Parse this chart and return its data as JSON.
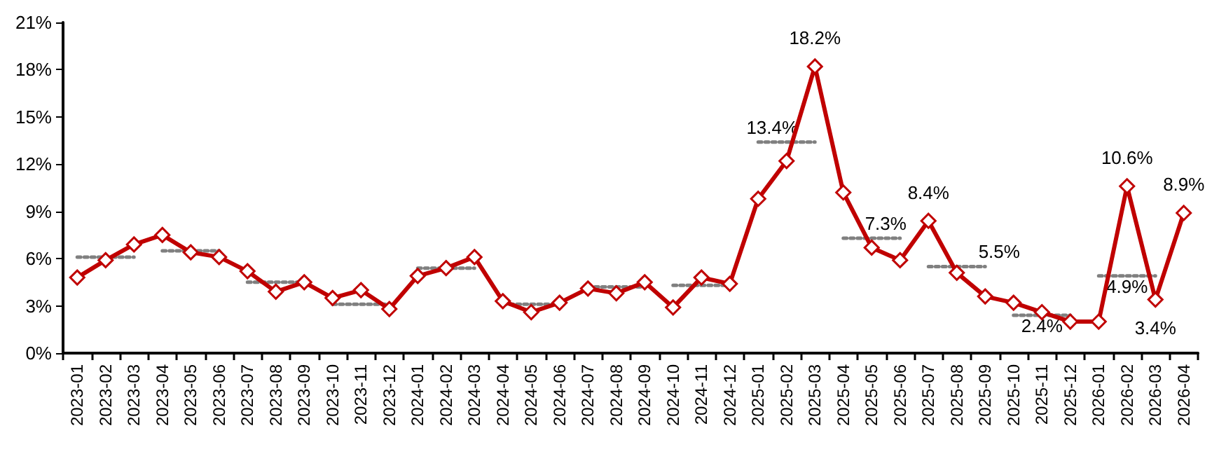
{
  "chart_data": {
    "type": "line",
    "categories": [
      "2023-01",
      "2023-02",
      "2023-03",
      "2023-04",
      "2023-05",
      "2023-06",
      "2023-07",
      "2023-08",
      "2023-09",
      "2023-10",
      "2023-11",
      "2023-12",
      "2024-01",
      "2024-02",
      "2024-03",
      "2024-04",
      "2024-05",
      "2024-06",
      "2024-07",
      "2024-08",
      "2024-09",
      "2024-10",
      "2024-11",
      "2024-12",
      "2025-01",
      "2025-02",
      "2025-03",
      "2025-04",
      "2025-05",
      "2025-06",
      "2025-07",
      "2025-08",
      "2025-09",
      "2025-10",
      "2025-11",
      "2025-12",
      "2026-01",
      "2026-02",
      "2026-03",
      "2026-04"
    ],
    "series": [
      {
        "color": "#c00000",
        "marker": "diamond",
        "line_style": "solid",
        "values": [
          4.8,
          5.9,
          6.9,
          7.5,
          6.4,
          6.1,
          5.2,
          3.9,
          4.5,
          3.5,
          4.0,
          2.8,
          4.9,
          5.4,
          6.1,
          3.3,
          2.6,
          3.2,
          4.1,
          3.8,
          4.5,
          2.9,
          4.8,
          4.4,
          9.8,
          12.2,
          18.2,
          10.2,
          6.7,
          5.9,
          8.4,
          5.1,
          3.6,
          3.2,
          2.6,
          2.0,
          2.0,
          10.6,
          3.4,
          8.9
        ],
        "value_labels": [
          null,
          null,
          null,
          null,
          null,
          null,
          null,
          null,
          null,
          null,
          null,
          null,
          null,
          null,
          null,
          null,
          null,
          null,
          null,
          null,
          null,
          null,
          null,
          null,
          null,
          null,
          "18.2%",
          null,
          null,
          null,
          "8.4%",
          null,
          null,
          null,
          null,
          null,
          null,
          "10.6%",
          "3.4%",
          "8.9%"
        ]
      },
      {
        "color": "#808080",
        "marker": "none",
        "line_style": "dotted",
        "values": [
          6.1,
          6.1,
          6.1,
          null,
          null,
          null,
          null,
          null,
          null,
          null,
          null,
          null,
          null,
          null,
          null,
          null,
          null,
          null,
          null,
          null,
          null,
          null,
          null,
          null,
          null,
          null,
          null,
          null,
          null,
          null,
          null,
          null,
          null,
          null,
          null,
          null,
          null,
          null,
          null,
          null
        ]
      },
      {
        "color": "#808080",
        "marker": "none",
        "line_style": "dotted",
        "values": [
          null,
          null,
          null,
          6.5,
          6.5,
          6.5,
          null,
          null,
          null,
          null,
          null,
          null,
          null,
          null,
          null,
          null,
          null,
          null,
          null,
          null,
          null,
          null,
          null,
          null,
          null,
          null,
          null,
          null,
          null,
          null,
          null,
          null,
          null,
          null,
          null,
          null,
          null,
          null,
          null,
          null
        ]
      },
      {
        "color": "#808080",
        "marker": "none",
        "line_style": "dotted",
        "values": [
          null,
          null,
          null,
          null,
          null,
          null,
          4.5,
          4.5,
          4.5,
          null,
          null,
          null,
          null,
          null,
          null,
          null,
          null,
          null,
          null,
          null,
          null,
          null,
          null,
          null,
          null,
          null,
          null,
          null,
          null,
          null,
          null,
          null,
          null,
          null,
          null,
          null,
          null,
          null,
          null,
          null
        ]
      },
      {
        "color": "#808080",
        "marker": "none",
        "line_style": "dotted",
        "values": [
          null,
          null,
          null,
          null,
          null,
          null,
          null,
          null,
          null,
          3.1,
          3.1,
          3.1,
          null,
          null,
          null,
          null,
          null,
          null,
          null,
          null,
          null,
          null,
          null,
          null,
          null,
          null,
          null,
          null,
          null,
          null,
          null,
          null,
          null,
          null,
          null,
          null,
          null,
          null,
          null,
          null
        ]
      },
      {
        "color": "#808080",
        "marker": "none",
        "line_style": "dotted",
        "values": [
          null,
          null,
          null,
          null,
          null,
          null,
          null,
          null,
          null,
          null,
          null,
          null,
          5.4,
          5.4,
          5.4,
          null,
          null,
          null,
          null,
          null,
          null,
          null,
          null,
          null,
          null,
          null,
          null,
          null,
          null,
          null,
          null,
          null,
          null,
          null,
          null,
          null,
          null,
          null,
          null,
          null
        ]
      },
      {
        "color": "#808080",
        "marker": "none",
        "line_style": "dotted",
        "values": [
          null,
          null,
          null,
          null,
          null,
          null,
          null,
          null,
          null,
          null,
          null,
          null,
          null,
          null,
          null,
          3.1,
          3.1,
          3.1,
          null,
          null,
          null,
          null,
          null,
          null,
          null,
          null,
          null,
          null,
          null,
          null,
          null,
          null,
          null,
          null,
          null,
          null,
          null,
          null,
          null,
          null
        ]
      },
      {
        "color": "#808080",
        "marker": "none",
        "line_style": "dotted",
        "values": [
          null,
          null,
          null,
          null,
          null,
          null,
          null,
          null,
          null,
          null,
          null,
          null,
          null,
          null,
          null,
          null,
          null,
          null,
          4.2,
          4.2,
          4.2,
          null,
          null,
          null,
          null,
          null,
          null,
          null,
          null,
          null,
          null,
          null,
          null,
          null,
          null,
          null,
          null,
          null,
          null,
          null
        ]
      },
      {
        "color": "#808080",
        "marker": "none",
        "line_style": "dotted",
        "values": [
          null,
          null,
          null,
          null,
          null,
          null,
          null,
          null,
          null,
          null,
          null,
          null,
          null,
          null,
          null,
          null,
          null,
          null,
          null,
          null,
          null,
          4.3,
          4.3,
          4.3,
          null,
          null,
          null,
          null,
          null,
          null,
          null,
          null,
          null,
          null,
          null,
          null,
          null,
          null,
          null,
          null
        ]
      },
      {
        "color": "#808080",
        "marker": "none",
        "line_style": "dotted",
        "values": [
          null,
          null,
          null,
          null,
          null,
          null,
          null,
          null,
          null,
          null,
          null,
          null,
          null,
          null,
          null,
          null,
          null,
          null,
          null,
          null,
          null,
          null,
          null,
          null,
          13.4,
          13.4,
          13.4,
          null,
          null,
          null,
          null,
          null,
          null,
          null,
          null,
          null,
          null,
          null,
          null,
          null
        ],
        "value_labels": [
          null,
          null,
          null,
          null,
          null,
          null,
          null,
          null,
          null,
          null,
          null,
          null,
          null,
          null,
          null,
          null,
          null,
          null,
          null,
          null,
          null,
          null,
          null,
          null,
          "13.4%",
          null,
          null,
          null,
          null,
          null,
          null,
          null,
          null,
          null,
          null,
          null,
          null,
          null,
          null,
          null
        ]
      },
      {
        "color": "#808080",
        "marker": "none",
        "line_style": "dotted",
        "values": [
          null,
          null,
          null,
          null,
          null,
          null,
          null,
          null,
          null,
          null,
          null,
          null,
          null,
          null,
          null,
          null,
          null,
          null,
          null,
          null,
          null,
          null,
          null,
          null,
          null,
          null,
          null,
          7.3,
          7.3,
          7.3,
          null,
          null,
          null,
          null,
          null,
          null,
          null,
          null,
          null,
          null
        ],
        "value_labels": [
          null,
          null,
          null,
          null,
          null,
          null,
          null,
          null,
          null,
          null,
          null,
          null,
          null,
          null,
          null,
          null,
          null,
          null,
          null,
          null,
          null,
          null,
          null,
          null,
          null,
          null,
          null,
          null,
          "7.3%",
          null,
          null,
          null,
          null,
          null,
          null,
          null,
          null,
          null,
          null,
          null
        ]
      },
      {
        "color": "#808080",
        "marker": "none",
        "line_style": "dotted",
        "values": [
          null,
          null,
          null,
          null,
          null,
          null,
          null,
          null,
          null,
          null,
          null,
          null,
          null,
          null,
          null,
          null,
          null,
          null,
          null,
          null,
          null,
          null,
          null,
          null,
          null,
          null,
          null,
          null,
          null,
          null,
          5.5,
          5.5,
          5.5,
          null,
          null,
          null,
          null,
          null,
          null,
          null
        ],
        "value_labels": [
          null,
          null,
          null,
          null,
          null,
          null,
          null,
          null,
          null,
          null,
          null,
          null,
          null,
          null,
          null,
          null,
          null,
          null,
          null,
          null,
          null,
          null,
          null,
          null,
          null,
          null,
          null,
          null,
          null,
          null,
          null,
          null,
          "5.5%",
          null,
          null,
          null,
          null,
          null,
          null,
          null
        ]
      },
      {
        "color": "#808080",
        "marker": "none",
        "line_style": "dotted",
        "values": [
          null,
          null,
          null,
          null,
          null,
          null,
          null,
          null,
          null,
          null,
          null,
          null,
          null,
          null,
          null,
          null,
          null,
          null,
          null,
          null,
          null,
          null,
          null,
          null,
          null,
          null,
          null,
          null,
          null,
          null,
          null,
          null,
          null,
          2.4,
          2.4,
          2.4,
          null,
          null,
          null,
          null
        ],
        "value_labels": [
          null,
          null,
          null,
          null,
          null,
          null,
          null,
          null,
          null,
          null,
          null,
          null,
          null,
          null,
          null,
          null,
          null,
          null,
          null,
          null,
          null,
          null,
          null,
          null,
          null,
          null,
          null,
          null,
          null,
          null,
          null,
          null,
          null,
          null,
          "2.4%",
          null,
          null,
          null,
          null,
          null
        ]
      },
      {
        "color": "#808080",
        "marker": "none",
        "line_style": "dotted",
        "values": [
          null,
          null,
          null,
          null,
          null,
          null,
          null,
          null,
          null,
          null,
          null,
          null,
          null,
          null,
          null,
          null,
          null,
          null,
          null,
          null,
          null,
          null,
          null,
          null,
          null,
          null,
          null,
          null,
          null,
          null,
          null,
          null,
          null,
          null,
          null,
          null,
          4.9,
          4.9,
          4.9,
          null
        ],
        "value_labels": [
          null,
          null,
          null,
          null,
          null,
          null,
          null,
          null,
          null,
          null,
          null,
          null,
          null,
          null,
          null,
          null,
          null,
          null,
          null,
          null,
          null,
          null,
          null,
          null,
          null,
          null,
          null,
          null,
          null,
          null,
          null,
          null,
          null,
          null,
          null,
          null,
          null,
          "4.9%",
          null,
          null
        ]
      }
    ],
    "ylim": [
      0,
      21
    ],
    "yticks": [
      {
        "value": 0,
        "label": "0%"
      },
      {
        "value": 3,
        "label": "3%"
      },
      {
        "value": 6,
        "label": "6%"
      },
      {
        "value": 9,
        "label": "9%"
      },
      {
        "value": 12,
        "label": "12%"
      },
      {
        "value": 15,
        "label": "15%"
      },
      {
        "value": 18,
        "label": "18%"
      },
      {
        "value": 21,
        "label": "21%"
      }
    ],
    "grid": false
  }
}
